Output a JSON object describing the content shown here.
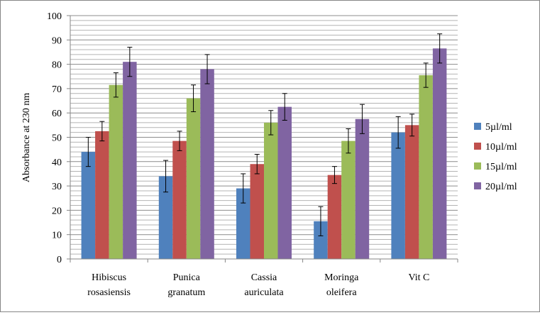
{
  "chart_data": {
    "type": "bar",
    "ylabel": "Absorbance at 230 nm",
    "xlabel": "",
    "ylim": [
      0,
      100
    ],
    "ytick_step": 10,
    "grid": true,
    "legend_position": "right",
    "categories": [
      [
        "Hibiscus",
        "rosasiensis"
      ],
      [
        "Punica",
        "granatum"
      ],
      [
        "Cassia",
        "auriculata"
      ],
      [
        "Moringa",
        "oleifera"
      ],
      [
        "Vit C"
      ]
    ],
    "series": [
      {
        "name": "5µl/ml",
        "color": "#4F81BD",
        "values": [
          44,
          34,
          29,
          15.5,
          52
        ],
        "errors": [
          6,
          6.5,
          6,
          6,
          6.5
        ]
      },
      {
        "name": "10µl/ml",
        "color": "#C0504D",
        "values": [
          52.5,
          48.5,
          39,
          34.5,
          55
        ],
        "errors": [
          4,
          4,
          4,
          3.5,
          4.5
        ]
      },
      {
        "name": "15µl/ml",
        "color": "#9BBB59",
        "values": [
          71.5,
          66,
          56,
          48.5,
          75.5
        ],
        "errors": [
          5,
          5.5,
          5,
          5,
          5
        ]
      },
      {
        "name": "20µl/ml",
        "color": "#8064A2",
        "values": [
          81,
          78,
          62.5,
          57.5,
          86.5
        ],
        "errors": [
          6,
          6,
          5.5,
          6,
          6
        ]
      }
    ]
  }
}
